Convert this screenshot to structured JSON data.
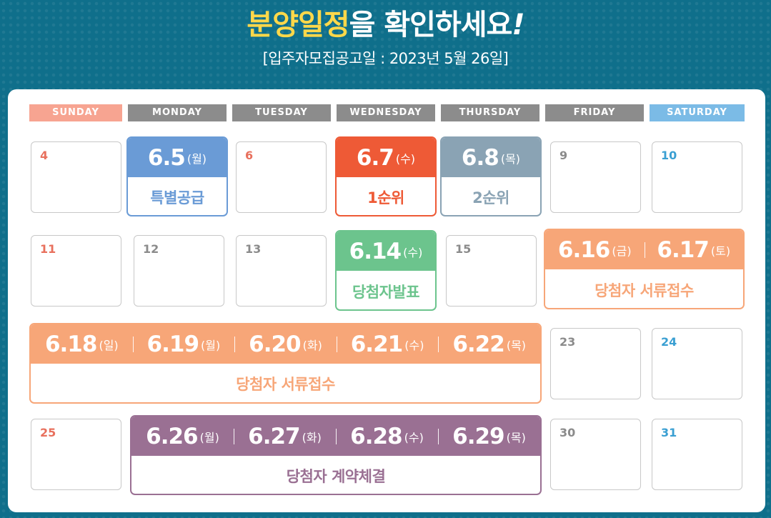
{
  "header": {
    "title_highlight": "분양일정",
    "title_rest": "을 확인하세요",
    "title_mark": "!",
    "subtitle": "[입주자모집공고일 : 2023년 5월 26일]"
  },
  "days": [
    "SUNDAY",
    "MONDAY",
    "TUESDAY",
    "WEDNESDAY",
    "THURSDAY",
    "FRIDAY",
    "SATURDAY"
  ],
  "plain_dates": {
    "d4": "4",
    "d6": "6",
    "d9": "9",
    "d10": "10",
    "d11": "11",
    "d12": "12",
    "d13": "13",
    "d15": "15",
    "d23": "23",
    "d24": "24",
    "d25": "25",
    "d30": "30",
    "d31": "31"
  },
  "events": {
    "special": {
      "date": "6.5",
      "weekday": "(월)",
      "label": "특별공급",
      "color": "#6a9bd6"
    },
    "first": {
      "date": "6.7",
      "weekday": "(수)",
      "label": "1순위",
      "color": "#ee5a36"
    },
    "second": {
      "date": "6.8",
      "weekday": "(목)",
      "label": "2순위",
      "color": "#8aa3b4"
    },
    "winner": {
      "date": "6.14",
      "weekday": "(수)",
      "label": "당첨자발표",
      "color": "#6cc48d"
    },
    "docs1": {
      "segments": [
        {
          "date": "6.16",
          "weekday": "(금)"
        },
        {
          "date": "6.17",
          "weekday": "(토)"
        }
      ],
      "label": "당첨자 서류접수",
      "color": "#f7a678"
    },
    "docs2": {
      "segments": [
        {
          "date": "6.18",
          "weekday": "(일)"
        },
        {
          "date": "6.19",
          "weekday": "(월)"
        },
        {
          "date": "6.20",
          "weekday": "(화)"
        },
        {
          "date": "6.21",
          "weekday": "(수)"
        },
        {
          "date": "6.22",
          "weekday": "(목)"
        }
      ],
      "label": "당첨자 서류접수",
      "color": "#f7a678"
    },
    "contract": {
      "segments": [
        {
          "date": "6.26",
          "weekday": "(월)"
        },
        {
          "date": "6.27",
          "weekday": "(화)"
        },
        {
          "date": "6.28",
          "weekday": "(수)"
        },
        {
          "date": "6.29",
          "weekday": "(목)"
        }
      ],
      "label": "당첨자 계약체결",
      "color": "#9a7093"
    }
  }
}
